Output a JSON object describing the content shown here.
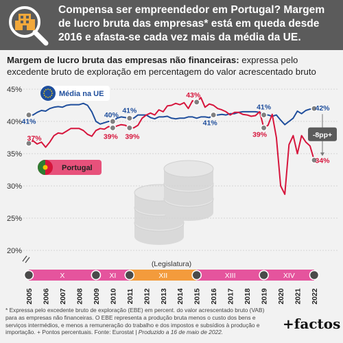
{
  "header": {
    "title": "Compensa ser empreendedor em Portugal? Margem de lucro bruta das empresas* está em queda desde 2016 e afasta-se cada vez mais da média da UE."
  },
  "subtitle": {
    "bold": "Margem de lucro bruta das empresas não financeiras:",
    "rest": " expressa pelo excedente bruto de exploração em percentagem do valor acrescentado bruto"
  },
  "chart_data": {
    "type": "line",
    "x": [
      2005.0,
      2005.25,
      2005.5,
      2005.75,
      2006.0,
      2006.25,
      2006.5,
      2006.75,
      2007.0,
      2007.25,
      2007.5,
      2007.75,
      2008.0,
      2008.25,
      2008.5,
      2008.75,
      2009.0,
      2009.25,
      2009.5,
      2009.75,
      2010.0,
      2010.25,
      2010.5,
      2010.75,
      2011.0,
      2011.25,
      2011.5,
      2011.75,
      2012.0,
      2012.25,
      2012.5,
      2012.75,
      2013.0,
      2013.25,
      2013.5,
      2013.75,
      2014.0,
      2014.25,
      2014.5,
      2014.75,
      2015.0,
      2015.25,
      2015.5,
      2015.75,
      2016.0,
      2016.25,
      2016.5,
      2016.75,
      2017.0,
      2017.25,
      2017.5,
      2017.75,
      2018.0,
      2018.25,
      2018.5,
      2018.75,
      2019.0,
      2019.25,
      2019.5,
      2019.75,
      2020.0,
      2020.25,
      2020.5,
      2020.75,
      2021.0,
      2021.25,
      2021.5,
      2021.75,
      2022.0
    ],
    "series": [
      {
        "name": "Média na UE",
        "color": "#1f4e9c",
        "values": [
          41.0,
          41.0,
          41.4,
          41.7,
          41.6,
          42.0,
          42.2,
          42.3,
          42.2,
          42.5,
          42.6,
          42.6,
          42.6,
          42.8,
          42.5,
          41.5,
          40.0,
          39.6,
          39.8,
          40.0,
          40.0,
          40.5,
          40.7,
          40.6,
          40.5,
          40.5,
          41.0,
          41.0,
          41.0,
          40.6,
          40.4,
          40.7,
          40.7,
          40.8,
          40.5,
          40.4,
          40.5,
          40.5,
          40.7,
          40.7,
          40.5,
          40.7,
          40.7,
          40.6,
          41.0,
          41.0,
          41.1,
          41.0,
          41.2,
          41.2,
          41.4,
          41.5,
          41.5,
          41.5,
          41.5,
          41.4,
          41.0,
          41.0,
          40.8,
          41.0,
          40.2,
          39.5,
          40.0,
          40.5,
          41.6,
          41.2,
          41.7,
          41.9,
          42.0
        ],
        "labels": [
          {
            "x": 2005,
            "text": "41%"
          },
          {
            "x": 2010,
            "text": "40%"
          },
          {
            "x": 2011,
            "text": "41%"
          },
          {
            "x": 2016,
            "text": "41%"
          },
          {
            "x": 2019,
            "text": "41%"
          },
          {
            "x": 2022,
            "text": "42%"
          }
        ]
      },
      {
        "name": "Portugal",
        "color": "#d6153c",
        "values": [
          36.6,
          37.0,
          36.5,
          36.8,
          36.0,
          36.8,
          37.8,
          38.2,
          38.1,
          38.5,
          38.9,
          38.9,
          38.9,
          38.6,
          38.0,
          37.7,
          38.6,
          38.9,
          38.8,
          39.2,
          39.0,
          39.3,
          39.5,
          39.4,
          39.0,
          39.0,
          39.4,
          40.5,
          41.0,
          41.3,
          41.0,
          41.8,
          41.5,
          42.4,
          42.5,
          42.8,
          42.6,
          42.9,
          42.0,
          43.2,
          43.0,
          43.7,
          42.2,
          42.7,
          42.5,
          42.0,
          41.8,
          41.5,
          41.0,
          41.4,
          41.4,
          41.1,
          41.0,
          40.8,
          40.9,
          41.5,
          39.0,
          39.4,
          41.1,
          37.5,
          30.0,
          28.7,
          36.4,
          37.8,
          35.0,
          37.8,
          36.8,
          36.2,
          34.0
        ],
        "labels": [
          {
            "x": 2005,
            "text": "37%"
          },
          {
            "x": 2010,
            "text": "39%"
          },
          {
            "x": 2011,
            "text": "39%"
          },
          {
            "x": 2015,
            "text": "43%"
          },
          {
            "x": 2019,
            "text": "39%"
          },
          {
            "x": 2022,
            "text": "34%"
          }
        ]
      }
    ],
    "legend": [
      {
        "series": "Média na UE",
        "label": "Média na UE"
      },
      {
        "series": "Portugal",
        "label": "Portugal"
      }
    ],
    "ylim": [
      17,
      45
    ],
    "yticks": [
      20,
      25,
      30,
      35,
      40,
      45
    ],
    "ytick_labels": [
      "20%",
      "25%",
      "30%",
      "35%",
      "40%",
      "45%"
    ],
    "xticks": [
      2005,
      2006,
      2007,
      2008,
      2009,
      2010,
      2011,
      2012,
      2013,
      2014,
      2015,
      2016,
      2017,
      2018,
      2019,
      2020,
      2021,
      2022
    ],
    "legislatures": {
      "title": "(Legislatura)",
      "items": [
        {
          "label": "X",
          "start": 2005,
          "end": 2009,
          "color": "#e5549d"
        },
        {
          "label": "XI",
          "start": 2009,
          "end": 2011,
          "color": "#e5549d"
        },
        {
          "label": "XII",
          "start": 2011,
          "end": 2015,
          "color": "#f39b3c"
        },
        {
          "label": "XIII",
          "start": 2015,
          "end": 2019,
          "color": "#e5549d"
        },
        {
          "label": "XIV",
          "start": 2019,
          "end": 2022,
          "color": "#e5549d"
        }
      ]
    },
    "gap_annotation": {
      "text": "-8pp+",
      "x": 2022
    }
  },
  "footnote": {
    "main": "* Expressa pelo excedente bruto de exploração (EBE) em percent. do valor acrescentado bruto (VAB) para as empresas não financeiras. O EBE representa a produção bruta menos o custo dos bens e serviços intermédios, e menos a remuneração do trabalho e dos impostos e subsídios à produção e importação. + Pontos percentuais. Fonte: Eurostat | ",
    "italic": "Produzido a 16 de maio de 2022."
  },
  "brand": {
    "label": "+factos"
  }
}
